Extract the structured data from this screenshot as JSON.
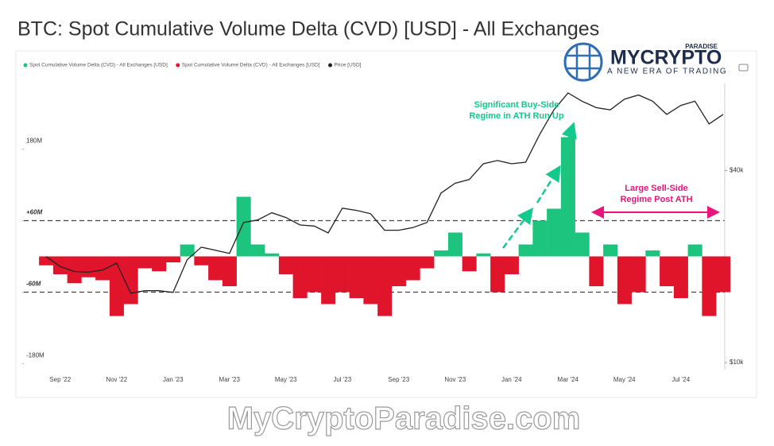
{
  "chart_data": {
    "type": "cvd_price",
    "title": "BTC: Spot Cumulative Volume Delta (CVD) [USD] - All Exchanges",
    "categories": [
      null,
      "Sep '22",
      null,
      null,
      null,
      "Nov '22",
      null,
      null,
      null,
      "Jan '23",
      null,
      null,
      null,
      "Mar '23",
      null,
      null,
      null,
      "May '23",
      null,
      null,
      null,
      "Jul '23",
      null,
      null,
      null,
      "Sep '23",
      null,
      null,
      null,
      "Nov '23",
      null,
      null,
      null,
      "Jan '24",
      null,
      null,
      null,
      "Mar '24",
      null,
      null,
      null,
      "May '24",
      null,
      null,
      null,
      "Jul '24",
      null,
      null,
      null
    ],
    "legend": [
      {
        "label": "Spot Cumulative Volume Delta (CVD) - All Exchanges [USD]",
        "color": "#1cc47e"
      },
      {
        "label": "Spot Cumulative Volume Delta (CVD) - All Exchanges [USD]",
        "color": "#e0142b"
      },
      {
        "label": "Price [USD]",
        "color": "#222222"
      }
    ],
    "series": [
      {
        "name": "Spot Cumulative Volume Delta (CVD) - All Exchanges [USD]",
        "color_positive": "#1cc47e",
        "color_negative": "#e0142b",
        "values": [
          -15000000,
          -30000000,
          -45000000,
          -35000000,
          -40000000,
          -100000000,
          -80000000,
          -20000000,
          -25000000,
          -10000000,
          20000000,
          -15000000,
          -40000000,
          -50000000,
          100000000,
          20000000,
          5000000,
          -30000000,
          -70000000,
          -60000000,
          -80000000,
          -60000000,
          -70000000,
          -80000000,
          -100000000,
          -50000000,
          -40000000,
          -20000000,
          10000000,
          40000000,
          -25000000,
          5000000,
          -60000000,
          -30000000,
          20000000,
          60000000,
          80000000,
          200000000,
          40000000,
          -50000000,
          20000000,
          -80000000,
          -60000000,
          10000000,
          -50000000,
          -70000000,
          20000000,
          -100000000,
          -60000000
        ]
      },
      {
        "name": "Price [USD]",
        "color": "#222222",
        "axis": "y2",
        "values": [
          21500,
          20000,
          19300,
          19200,
          19500,
          20500,
          16500,
          16800,
          16800,
          16600,
          21000,
          23000,
          22500,
          22000,
          27500,
          28000,
          29500,
          28500,
          27000,
          26800,
          25500,
          30500,
          30000,
          29300,
          26000,
          26000,
          26500,
          27500,
          34000,
          36500,
          37500,
          42000,
          43000,
          42000,
          42500,
          52000,
          62000,
          70000,
          66000,
          63000,
          62000,
          67000,
          69000,
          66000,
          60000,
          64000,
          66000,
          56000,
          60000
        ]
      }
    ],
    "ylim": [
      -190000000,
      290000000
    ],
    "yticks": [
      {
        "value": 180000000,
        "label": "180M"
      },
      {
        "value": 60000000,
        "label": "+60M"
      },
      {
        "value": -60000000,
        "label": "-60M"
      },
      {
        "value": -180000000,
        "label": "-180M"
      }
    ],
    "reference_lines": [
      60000000,
      -60000000
    ],
    "y2lim": [
      9500,
      75000
    ],
    "y2ticks": [
      {
        "value": 40000,
        "label": "$40k"
      },
      {
        "value": 10000,
        "label": "$10k"
      }
    ],
    "y2_log": true,
    "annotations": [
      {
        "lines": [
          "Significant Buy-Side",
          "Regime in ATH Run Up"
        ],
        "color": "#14c98c"
      },
      {
        "lines": [
          "Large Sell-Side",
          "Regime Post ATH"
        ],
        "color": "#e8157a"
      }
    ]
  },
  "branding": {
    "logo_text": "MYCRYPTO",
    "logo_super": "PARADISE",
    "tagline": "A NEW ERA OF TRADING",
    "watermark": "MyCryptoParadise.com"
  }
}
